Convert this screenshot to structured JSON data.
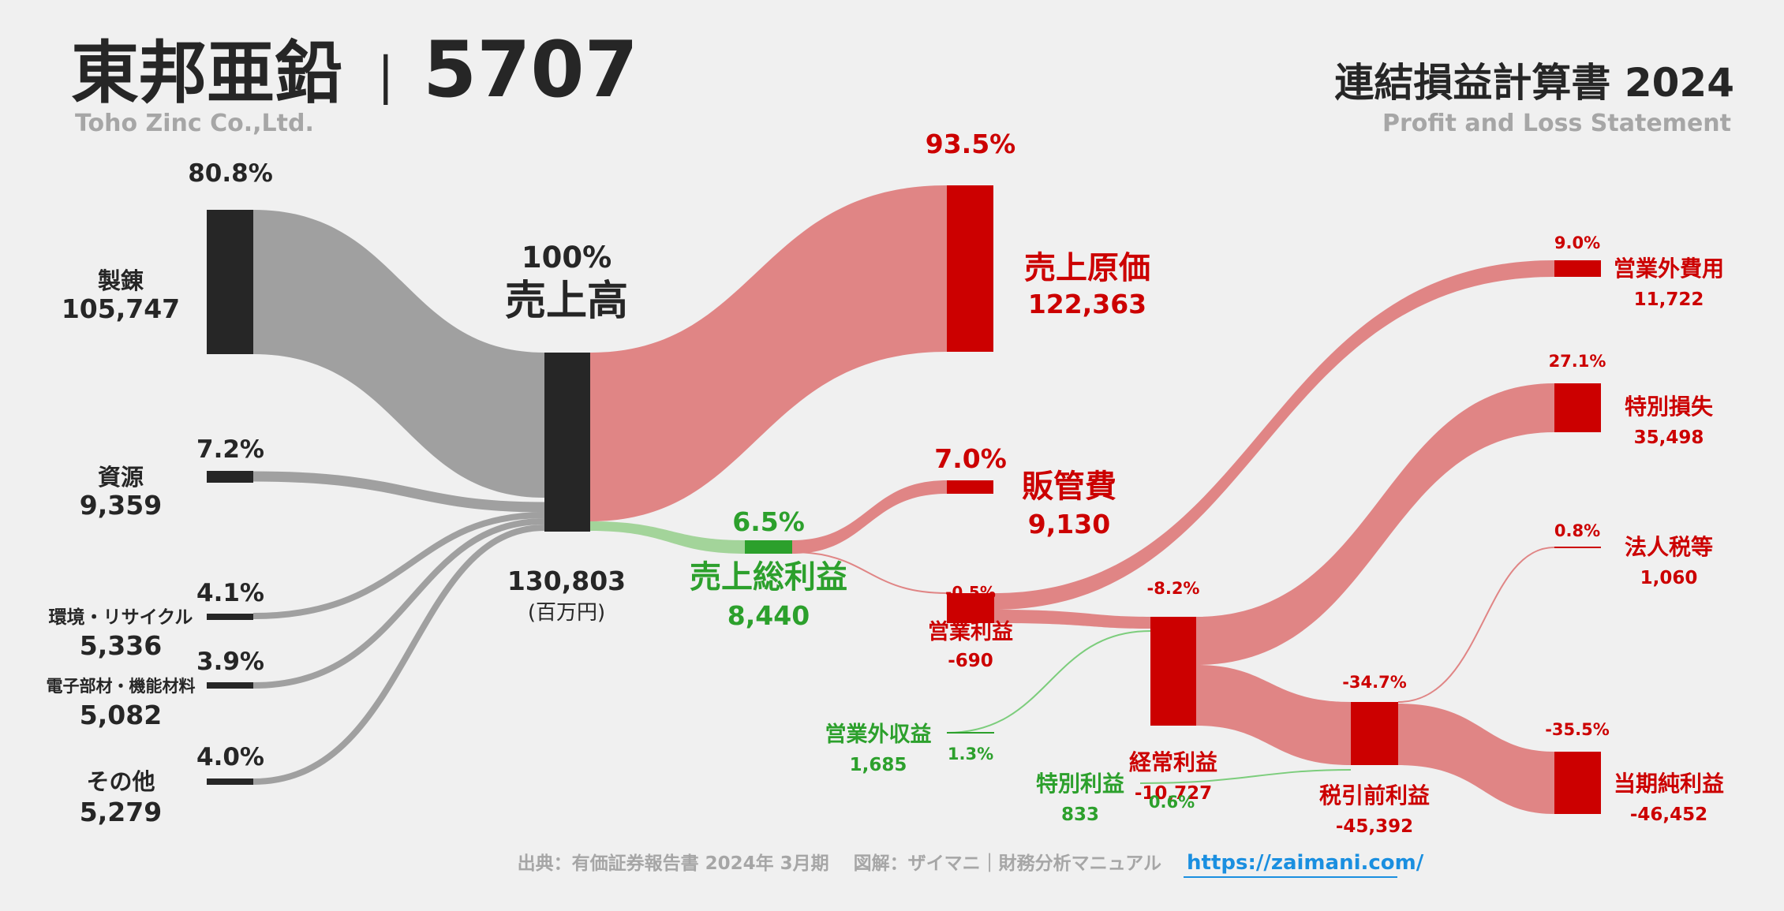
{
  "header": {
    "company": "東邦亜鉛",
    "divider": "|",
    "code": "5707",
    "company_en": "Toho Zinc Co.,Ltd.",
    "statement": "連結損益計算書 2024",
    "statement_en": "Profit and Loss Statement"
  },
  "colors": {
    "dark": "#262626",
    "grey_flow": "#a0a0a0",
    "red": "#cc0000",
    "red_flow": "#e08585",
    "green": "#2ca02c",
    "green_flow": "#a3d49a",
    "subtitle": "#a6a6a6",
    "link": "#1a8fe0"
  },
  "segments": [
    {
      "name": "製錬",
      "value": "105,747",
      "pct": "80.8%"
    },
    {
      "name": "資源",
      "value": "9,359",
      "pct": "7.2%"
    },
    {
      "name": "環境・リサイクル",
      "value": "5,336",
      "pct": "4.1%"
    },
    {
      "name": "電子部材・機能材料",
      "value": "5,082",
      "pct": "3.9%"
    },
    {
      "name": "その他",
      "value": "5,279",
      "pct": "4.0%"
    }
  ],
  "revenue": {
    "name": "売上高",
    "value": "130,803",
    "pct": "100%",
    "unit": "(百万円)"
  },
  "cogs": {
    "name": "売上原価",
    "value": "122,363",
    "pct": "93.5%"
  },
  "sga": {
    "name": "販管費",
    "value": "9,130",
    "pct": "7.0%"
  },
  "gross_profit": {
    "name": "売上総利益",
    "value": "8,440",
    "pct": "6.5%"
  },
  "operating_profit": {
    "name": "営業利益",
    "value": "-690",
    "pct": "-0.5%"
  },
  "non_op_income": {
    "name": "営業外収益",
    "value": "1,685",
    "pct": "1.3%"
  },
  "non_op_expense": {
    "name": "営業外費用",
    "value": "11,722",
    "pct": "9.0%"
  },
  "ordinary_profit": {
    "name": "経常利益",
    "value": "-10,727",
    "pct": "-8.2%"
  },
  "extraordinary_income": {
    "name": "特別利益",
    "value": "833",
    "pct": "0.6%"
  },
  "extraordinary_loss": {
    "name": "特別損失",
    "value": "35,498",
    "pct": "27.1%"
  },
  "pretax_profit": {
    "name": "税引前利益",
    "value": "-45,392",
    "pct": "-34.7%"
  },
  "income_tax": {
    "name": "法人税等",
    "value": "1,060",
    "pct": "0.8%"
  },
  "net_profit": {
    "name": "当期純利益",
    "value": "-46,452",
    "pct": "-35.5%"
  },
  "footer": {
    "source": "出典：有価証券報告書 2024年 3月期　 図解：ザイマニ｜財務分析マニュアル",
    "url": "https://zaimani.com/"
  }
}
